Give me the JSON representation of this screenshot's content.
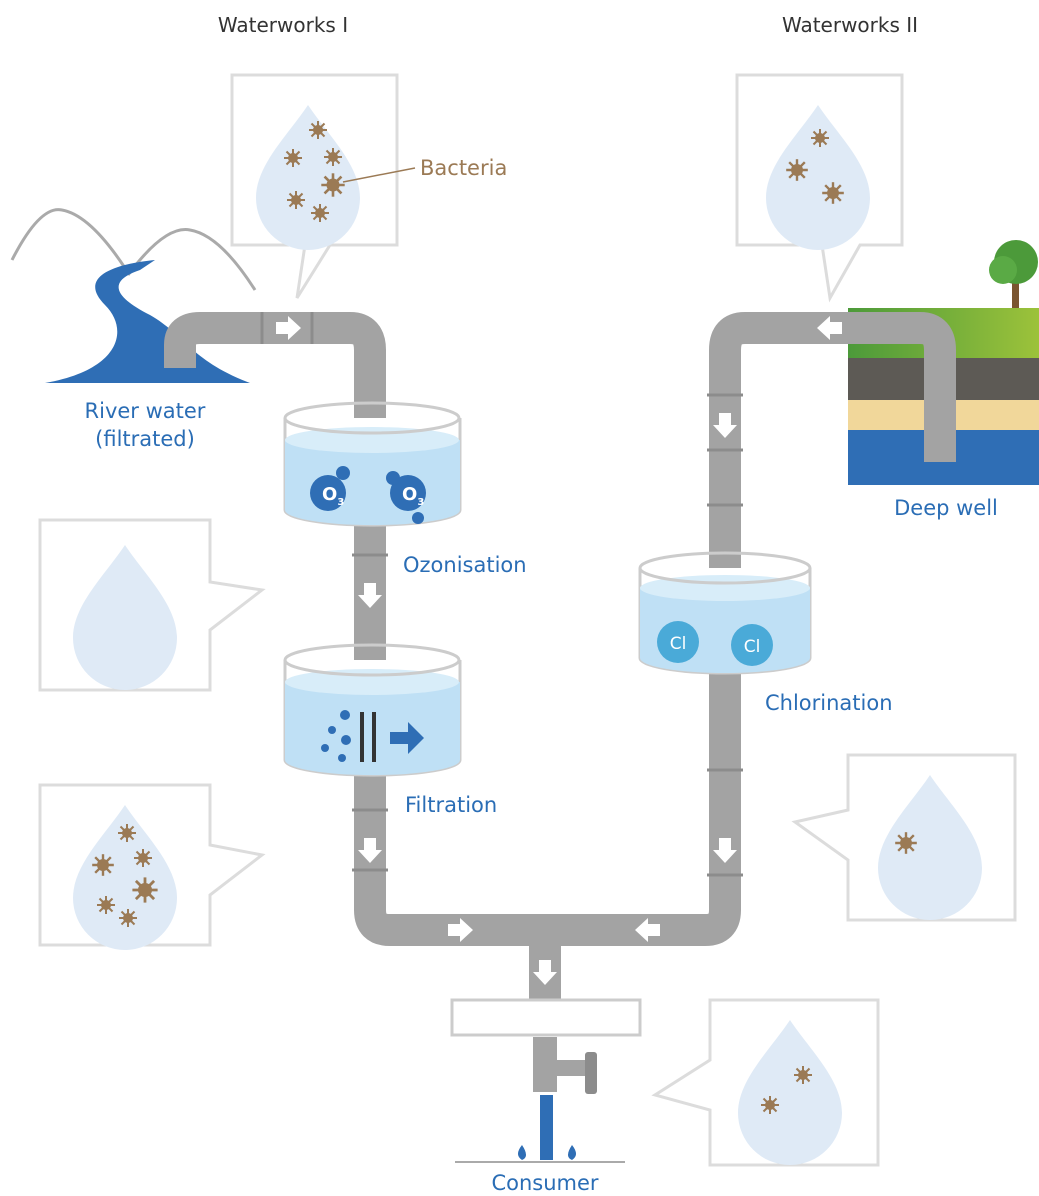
{
  "titles": {
    "left": "Waterworks I",
    "right": "Waterworks II"
  },
  "labels": {
    "bacteria": "Bacteria",
    "river_line1": "River water",
    "river_line2": "(filtrated)",
    "ozonisation": "Ozonisation",
    "filtration": "Filtration",
    "deep_well": "Deep well",
    "chlorination": "Chlorination",
    "consumer": "Consumer"
  },
  "symbols": {
    "ozone": [
      "O",
      "3"
    ],
    "chlorine": "Cl"
  }
}
